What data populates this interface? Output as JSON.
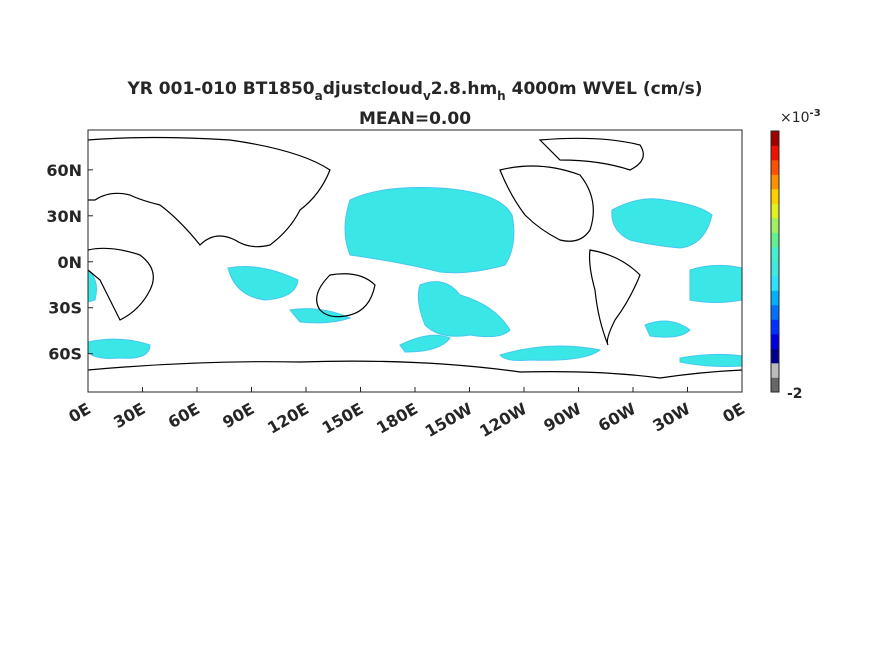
{
  "map": {
    "title": {
      "parts": [
        {
          "text": "YR 001-010 BT1850",
          "style": "normal"
        },
        {
          "text": "a",
          "style": "sub"
        },
        {
          "text": "djustcloud",
          "style": "normal"
        },
        {
          "text": "v",
          "style": "sub"
        },
        {
          "text": "2.8.hm",
          "style": "normal"
        },
        {
          "text": "h",
          "style": "sub"
        },
        {
          "text": " 4000m WVEL (cm/s)",
          "style": "normal"
        }
      ]
    },
    "subtitle": "MEAN=0.00",
    "lat_range": [
      -85,
      86
    ],
    "lon_range": [
      0,
      360
    ],
    "lat_ticks": [
      {
        "value": 60,
        "label": "60N"
      },
      {
        "value": 30,
        "label": "30N"
      },
      {
        "value": 0,
        "label": "0N"
      },
      {
        "value": -30,
        "label": "30S"
      },
      {
        "value": -60,
        "label": "60S"
      }
    ],
    "lon_ticks": [
      {
        "value": 0,
        "label": "0E"
      },
      {
        "value": 30,
        "label": "30E"
      },
      {
        "value": 60,
        "label": "60E"
      },
      {
        "value": 90,
        "label": "90E"
      },
      {
        "value": 120,
        "label": "120E"
      },
      {
        "value": 150,
        "label": "150E"
      },
      {
        "value": 180,
        "label": "180E"
      },
      {
        "value": 210,
        "label": "150W"
      },
      {
        "value": 240,
        "label": "120W"
      },
      {
        "value": 270,
        "label": "90W"
      },
      {
        "value": 300,
        "label": "60W"
      },
      {
        "value": 330,
        "label": "30W"
      },
      {
        "value": 360,
        "label": "0E"
      }
    ],
    "colorbar": {
      "multiplier": "×10",
      "exponent": "-3",
      "min_label": "-2"
    }
  }
}
